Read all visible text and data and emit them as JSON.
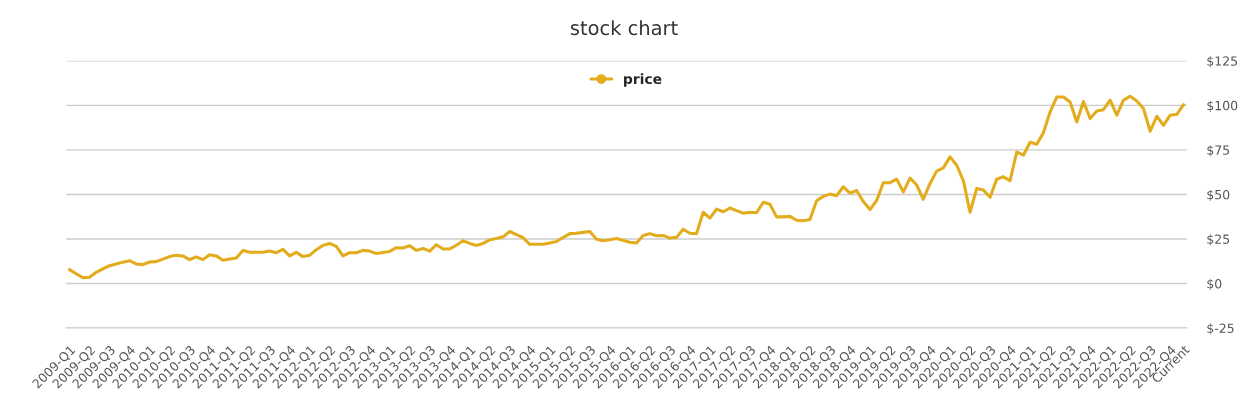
{
  "chart_data": {
    "type": "line",
    "title": "stock chart",
    "categories": [
      "2009-Q1",
      null,
      null,
      "2009-Q2",
      null,
      null,
      "2009-Q3",
      null,
      null,
      "2009-Q4",
      null,
      null,
      "2010-Q1",
      null,
      null,
      "2010-Q2",
      null,
      null,
      "2010-Q3",
      null,
      null,
      "2010-Q4",
      null,
      null,
      "2011-Q1",
      null,
      null,
      "2011-Q2",
      null,
      null,
      "2011-Q3",
      null,
      null,
      "2011-Q4",
      null,
      null,
      "2012-Q1",
      null,
      null,
      "2012-Q2",
      null,
      null,
      "2012-Q3",
      null,
      null,
      "2012-Q4",
      null,
      null,
      "2013-Q1",
      null,
      null,
      "2013-Q2",
      null,
      null,
      "2013-Q3",
      null,
      null,
      "2013-Q4",
      null,
      null,
      "2014-Q1",
      null,
      null,
      "2014-Q2",
      null,
      null,
      "2014-Q3",
      null,
      null,
      "2014-Q4",
      null,
      null,
      "2015-Q1",
      null,
      null,
      "2015-Q2",
      null,
      null,
      "2015-Q3",
      null,
      null,
      "2015-Q4",
      null,
      null,
      "2016-Q1",
      null,
      null,
      "2016-Q2",
      null,
      null,
      "2016-Q3",
      null,
      null,
      "2016-Q4",
      null,
      null,
      "2017-Q1",
      null,
      null,
      "2017-Q2",
      null,
      null,
      "2017-Q3",
      null,
      null,
      "2017-Q4",
      null,
      null,
      "2018-Q1",
      null,
      null,
      "2018-Q2",
      null,
      null,
      "2018-Q3",
      null,
      null,
      "2018-Q4",
      null,
      null,
      "2019-Q1",
      null,
      null,
      "2019-Q2",
      null,
      null,
      "2019-Q3",
      null,
      null,
      "2019-Q4",
      null,
      null,
      "2020-Q1",
      null,
      null,
      "2020-Q2",
      null,
      null,
      "2020-Q3",
      null,
      null,
      "2020-Q4",
      null,
      null,
      "2021-Q1",
      null,
      null,
      "2021-Q2",
      null,
      null,
      "2021-Q3",
      null,
      null,
      "2021-Q4",
      null,
      null,
      "2022-Q1",
      null,
      null,
      "2022-Q2",
      null,
      null,
      "2022-Q3",
      null,
      null,
      "2022-Q4",
      null,
      "Current"
    ],
    "series": [
      {
        "name": "price",
        "color": "#e3ac1c",
        "values": [
          7.8,
          5.5,
          3.3,
          3.5,
          6.3,
          8.2,
          10,
          11,
          12,
          12.8,
          11,
          10.6,
          12.1,
          12.3,
          13.7,
          15.1,
          15.8,
          15.5,
          13.4,
          15,
          13.4,
          16.2,
          15.5,
          13.1,
          13.7,
          14.3,
          18.6,
          17.5,
          17.5,
          17.5,
          18.2,
          17.3,
          19.2,
          15.5,
          17.5,
          15.1,
          15.8,
          19,
          21.4,
          22.5,
          20.9,
          15.5,
          17.3,
          17.3,
          18.6,
          18.2,
          16.8,
          17.4,
          18,
          20.1,
          19.9,
          21.2,
          18.6,
          19.7,
          18.2,
          21.8,
          19.4,
          19.4,
          21.5,
          24,
          22.5,
          21.4,
          22.5,
          24.5,
          25.3,
          26.2,
          29.2,
          27.5,
          25.7,
          22,
          22,
          22,
          22.8,
          23.6,
          25.8,
          28,
          28.2,
          28.7,
          29.2,
          24.8,
          24,
          24.6,
          25.3,
          24.2,
          23.2,
          22.8,
          27,
          28,
          26.8,
          27,
          25.5,
          25.9,
          30.5,
          28.2,
          28,
          40,
          36.7,
          41.8,
          40.3,
          42.4,
          40.9,
          39.5,
          40,
          39.7,
          45.6,
          44.5,
          37.4,
          37.4,
          37.7,
          35.5,
          35.2,
          35.9,
          46.5,
          48.9,
          50.2,
          49.3,
          54.3,
          50.7,
          52.2,
          46,
          41.5,
          46.6,
          56.6,
          56.6,
          58.6,
          51.4,
          59.2,
          55.3,
          47.3,
          56.2,
          63.1,
          64.9,
          71.1,
          66.4,
          57.7,
          40,
          53.4,
          52.5,
          48.4,
          58.6,
          59.9,
          57.7,
          73.9,
          72,
          79.3,
          78.2,
          84.7,
          96.3,
          104.7,
          104.7,
          101.9,
          90.7,
          102.2,
          92.6,
          96.9,
          97.6,
          102.9,
          94.5,
          102.9,
          105.1,
          102.5,
          98.2,
          85.5,
          93.9,
          88.8,
          94.5,
          95,
          100.4
        ]
      }
    ],
    "ylim": [
      -25,
      125
    ],
    "yticks": [
      {
        "value": -25,
        "label": "$-25"
      },
      {
        "value": 0,
        "label": "$0"
      },
      {
        "value": 25,
        "label": "$25"
      },
      {
        "value": 50,
        "label": "$50"
      },
      {
        "value": 75,
        "label": "$75"
      },
      {
        "value": 100,
        "label": "$100"
      },
      {
        "value": 125,
        "label": "$125"
      }
    ],
    "grid": "y",
    "legend": "top",
    "line_style": "solid"
  }
}
